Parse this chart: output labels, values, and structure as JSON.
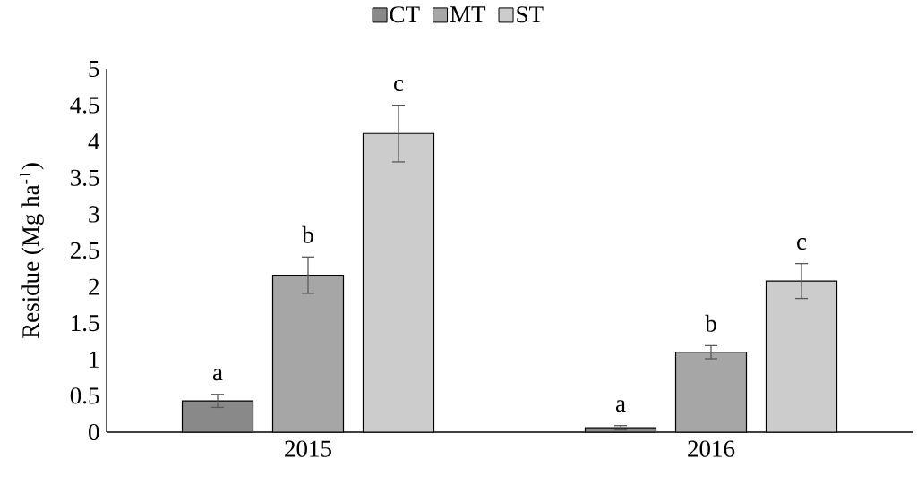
{
  "chart_data": {
    "type": "bar",
    "ylabel": "Residue (Mg ha$^{-1}$)",
    "categories": [
      "2015",
      "2016"
    ],
    "series": [
      {
        "name": "CT",
        "color": "#898989",
        "values": [
          0.43,
          0.06
        ],
        "errors": [
          0.09,
          0.03
        ],
        "value_labels": [
          "a",
          "a"
        ]
      },
      {
        "name": "MT",
        "color": "#a6a6a6",
        "values": [
          2.16,
          1.1
        ],
        "errors": [
          0.25,
          0.09
        ],
        "value_labels": [
          "b",
          "b"
        ]
      },
      {
        "name": "ST",
        "color": "#cccccc",
        "values": [
          4.11,
          2.08
        ],
        "errors": [
          0.39,
          0.24
        ],
        "value_labels": [
          "c",
          "c"
        ]
      }
    ],
    "ylim": [
      0,
      5
    ],
    "yticks": [
      0,
      0.5,
      1,
      1.5,
      2,
      2.5,
      3,
      3.5,
      4,
      4.5,
      5
    ],
    "legend": "top"
  }
}
